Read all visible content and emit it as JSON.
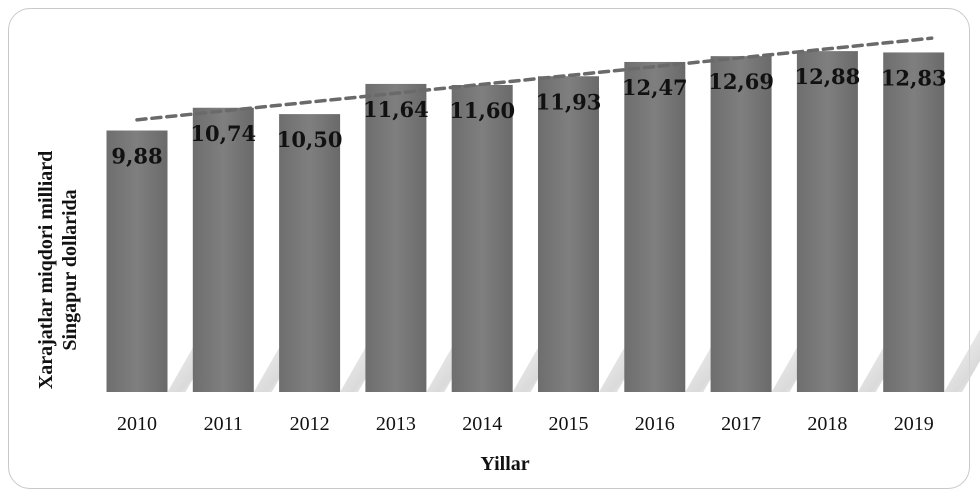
{
  "chart_data": {
    "type": "bar",
    "categories": [
      "2010",
      "2011",
      "2012",
      "2013",
      "2014",
      "2015",
      "2016",
      "2017",
      "2018",
      "2019"
    ],
    "values": [
      9.88,
      10.74,
      10.5,
      11.64,
      11.6,
      11.93,
      12.47,
      12.69,
      12.88,
      12.83
    ],
    "value_labels": [
      "9,88",
      "10,74",
      "10,50",
      "11,64",
      "11,60",
      "11,93",
      "12,47",
      "12,69",
      "12,88",
      "12,83"
    ],
    "title": "",
    "xlabel": "Yillar",
    "ylabel_lines": [
      "Xarajatlar miqdori milliard",
      "Singapur dollarida"
    ],
    "ylim": [
      0,
      13.3
    ],
    "trendline": "linear, dashed",
    "grid": false,
    "legend": "none",
    "colors": {
      "bar": "#7a7a7a",
      "bar_dark": "#5e5e5e",
      "trend": "#6a6a6a",
      "frame": "#c9c9c9"
    }
  }
}
